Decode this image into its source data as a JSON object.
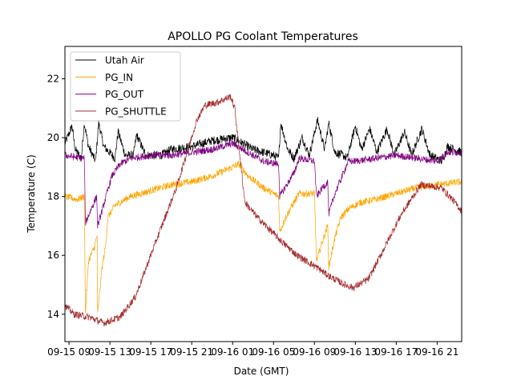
{
  "chart_data": {
    "type": "line",
    "title": "APOLLO PG Coolant Temperatures",
    "xlabel": "Date (GMT)",
    "ylabel": "Temperature (C)",
    "x_units": "hours since 09-15 09:00",
    "xlim": [
      -0.4,
      38.4
    ],
    "ylim": [
      13.07,
      23.1
    ],
    "x_ticks": [
      {
        "value": 0,
        "label": "09-15 09"
      },
      {
        "value": 4,
        "label": "09-15 13"
      },
      {
        "value": 8,
        "label": "09-15 17"
      },
      {
        "value": 12,
        "label": "09-15 21"
      },
      {
        "value": 16,
        "label": "09-16 01"
      },
      {
        "value": 20,
        "label": "09-16 05"
      },
      {
        "value": 24,
        "label": "09-16 09"
      },
      {
        "value": 28,
        "label": "09-16 13"
      },
      {
        "value": 32,
        "label": "09-16 17"
      },
      {
        "value": 36,
        "label": "09-16 21"
      }
    ],
    "y_ticks": [
      {
        "value": 14,
        "label": "14"
      },
      {
        "value": 16,
        "label": "16"
      },
      {
        "value": 18,
        "label": "18"
      },
      {
        "value": 20,
        "label": "20"
      },
      {
        "value": 22,
        "label": "22"
      }
    ],
    "grid": false,
    "legend_position": "top-left",
    "series": [
      {
        "name": "Utah Air",
        "color": "#000000",
        "noise": 0.15,
        "points": [
          [
            -0.4,
            19.8
          ],
          [
            0.3,
            20.4
          ],
          [
            0.6,
            19.6
          ],
          [
            1.2,
            19.3
          ],
          [
            1.5,
            20.5
          ],
          [
            1.9,
            19.7
          ],
          [
            2.6,
            19.2
          ],
          [
            2.9,
            20.5
          ],
          [
            3.4,
            19.7
          ],
          [
            4.5,
            19.3
          ],
          [
            4.8,
            20.2
          ],
          [
            5.5,
            19.4
          ],
          [
            6.3,
            19.4
          ],
          [
            6.6,
            20.1
          ],
          [
            7.5,
            19.4
          ],
          [
            9,
            19.4
          ],
          [
            10,
            19.6
          ],
          [
            12,
            19.7
          ],
          [
            14,
            19.9
          ],
          [
            16,
            20.0
          ],
          [
            17,
            19.8
          ],
          [
            18,
            19.6
          ],
          [
            19,
            19.5
          ],
          [
            20,
            19.4
          ],
          [
            20.5,
            19.3
          ],
          [
            20.7,
            20.5
          ],
          [
            21.4,
            19.6
          ],
          [
            22,
            19.3
          ],
          [
            22.8,
            20.0
          ],
          [
            23.5,
            19.4
          ],
          [
            24.3,
            20.6
          ],
          [
            25,
            19.6
          ],
          [
            25.4,
            20.5
          ],
          [
            26,
            19.5
          ],
          [
            26.8,
            19.4
          ],
          [
            27.2,
            19.3
          ],
          [
            28,
            20.4
          ],
          [
            28.6,
            19.6
          ],
          [
            29.4,
            20.3
          ],
          [
            30.1,
            19.5
          ],
          [
            31.1,
            20.3
          ],
          [
            31.8,
            19.4
          ],
          [
            32.8,
            20.2
          ],
          [
            33.5,
            19.4
          ],
          [
            34.5,
            20.3
          ],
          [
            35.3,
            19.4
          ],
          [
            36.5,
            19.2
          ],
          [
            37,
            19.7
          ],
          [
            38.4,
            19.5
          ]
        ]
      },
      {
        "name": "PG_IN",
        "color": "#FFA500",
        "noise": 0.12,
        "points": [
          [
            -0.4,
            18.0
          ],
          [
            0.8,
            17.9
          ],
          [
            1.5,
            18.0
          ],
          [
            1.6,
            14.0
          ],
          [
            1.9,
            15.8
          ],
          [
            2.5,
            16.3
          ],
          [
            2.75,
            16.7
          ],
          [
            2.8,
            14.0
          ],
          [
            3.2,
            15.5
          ],
          [
            3.6,
            16.4
          ],
          [
            3.8,
            17.3
          ],
          [
            4.5,
            17.7
          ],
          [
            6,
            18.0
          ],
          [
            8,
            18.2
          ],
          [
            10,
            18.4
          ],
          [
            12,
            18.5
          ],
          [
            14,
            18.7
          ],
          [
            16,
            19.0
          ],
          [
            16.6,
            19.1
          ],
          [
            17.5,
            18.7
          ],
          [
            19,
            18.3
          ],
          [
            20.5,
            18.0
          ],
          [
            20.6,
            16.8
          ],
          [
            21.2,
            17.3
          ],
          [
            22,
            17.8
          ],
          [
            22.5,
            18.1
          ],
          [
            24,
            18.1
          ],
          [
            24.2,
            15.8
          ],
          [
            24.8,
            16.5
          ],
          [
            25.3,
            17.0
          ],
          [
            25.4,
            15.6
          ],
          [
            26,
            16.6
          ],
          [
            26.6,
            17.3
          ],
          [
            27.4,
            17.6
          ],
          [
            28.5,
            17.8
          ],
          [
            30,
            17.9
          ],
          [
            32,
            18.1
          ],
          [
            34,
            18.3
          ],
          [
            36,
            18.4
          ],
          [
            38.4,
            18.5
          ]
        ]
      },
      {
        "name": "PG_OUT",
        "color": "#800080",
        "noise": 0.12,
        "points": [
          [
            -0.4,
            19.4
          ],
          [
            1.2,
            19.3
          ],
          [
            1.5,
            19.3
          ],
          [
            1.6,
            17.1
          ],
          [
            2.2,
            17.6
          ],
          [
            2.7,
            18.0
          ],
          [
            2.8,
            17.0
          ],
          [
            3.3,
            17.6
          ],
          [
            3.7,
            18.1
          ],
          [
            4.2,
            18.7
          ],
          [
            5,
            19.1
          ],
          [
            6,
            19.3
          ],
          [
            8,
            19.4
          ],
          [
            10,
            19.4
          ],
          [
            12,
            19.5
          ],
          [
            14,
            19.6
          ],
          [
            16,
            19.8
          ],
          [
            17,
            19.6
          ],
          [
            18,
            19.4
          ],
          [
            19,
            19.2
          ],
          [
            20.5,
            19.1
          ],
          [
            20.6,
            18.0
          ],
          [
            21.3,
            18.4
          ],
          [
            22,
            18.8
          ],
          [
            22.5,
            19.3
          ],
          [
            24,
            19.2
          ],
          [
            24.2,
            18.0
          ],
          [
            24.8,
            18.3
          ],
          [
            25.3,
            18.5
          ],
          [
            25.4,
            17.4
          ],
          [
            26,
            18.1
          ],
          [
            26.6,
            18.6
          ],
          [
            27.3,
            19.2
          ],
          [
            28,
            19.2
          ],
          [
            30,
            19.3
          ],
          [
            32,
            19.4
          ],
          [
            34,
            19.3
          ],
          [
            36,
            19.2
          ],
          [
            37,
            19.5
          ],
          [
            38.4,
            19.5
          ]
        ]
      },
      {
        "name": "PG_SHUTTLE",
        "color": "#A52A2A",
        "noise": 0.12,
        "points": [
          [
            -0.4,
            14.3
          ],
          [
            0.5,
            14.0
          ],
          [
            2,
            13.9
          ],
          [
            3.4,
            13.7
          ],
          [
            5,
            13.9
          ],
          [
            6.5,
            14.6
          ],
          [
            8.2,
            16.2
          ],
          [
            10.5,
            18.3
          ],
          [
            12.5,
            20.6
          ],
          [
            13.3,
            21.1
          ],
          [
            14.5,
            21.2
          ],
          [
            15.8,
            21.4
          ],
          [
            16.2,
            21.0
          ],
          [
            17.2,
            17.8
          ],
          [
            18.4,
            17.3
          ],
          [
            20.7,
            16.5
          ],
          [
            22.3,
            16.0
          ],
          [
            24.2,
            15.6
          ],
          [
            25.4,
            15.3
          ],
          [
            27,
            15.0
          ],
          [
            27.8,
            14.9
          ],
          [
            29.3,
            15.2
          ],
          [
            30.9,
            16.3
          ],
          [
            32.5,
            17.4
          ],
          [
            34.4,
            18.4
          ],
          [
            36.4,
            18.3
          ],
          [
            37.5,
            17.9
          ],
          [
            38.4,
            17.5
          ]
        ]
      }
    ]
  }
}
